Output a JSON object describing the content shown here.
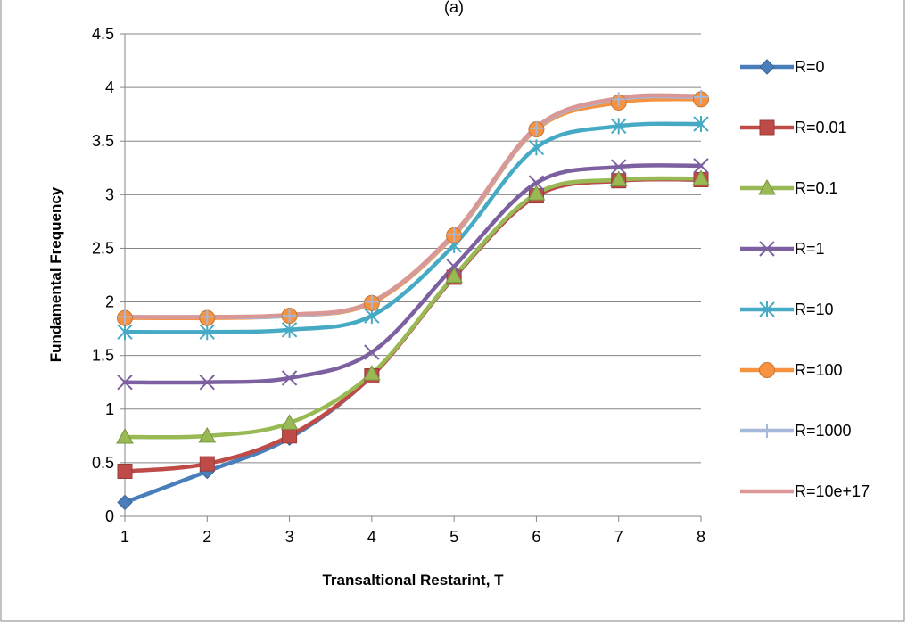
{
  "chart_data": {
    "type": "line",
    "title": "(a)",
    "xlabel": "Transaltional Restarint, T",
    "ylabel": "Fundamental Frequency",
    "x": [
      1,
      2,
      3,
      4,
      5,
      6,
      7,
      8
    ],
    "xlim": [
      1,
      8
    ],
    "ylim": [
      0,
      4.5
    ],
    "yticks": [
      "0",
      "0.5",
      "1",
      "1.5",
      "2",
      "2.5",
      "3",
      "3.5",
      "4",
      "4.5"
    ],
    "xticks": [
      "1",
      "2",
      "3",
      "4",
      "5",
      "6",
      "7",
      "8"
    ],
    "grid": "horizontal",
    "legend_position": "right",
    "series": [
      {
        "name": "R=0",
        "color": "#4a7ebb",
        "marker": "diamond",
        "values": [
          0.13,
          0.42,
          0.73,
          1.31,
          2.23,
          2.99,
          3.13,
          3.14
        ]
      },
      {
        "name": "R=0.01",
        "color": "#be4b48",
        "marker": "square",
        "values": [
          0.42,
          0.49,
          0.75,
          1.31,
          2.23,
          2.99,
          3.13,
          3.14
        ]
      },
      {
        "name": "R=0.1",
        "color": "#98b954",
        "marker": "triangle",
        "values": [
          0.74,
          0.75,
          0.87,
          1.33,
          2.24,
          3.01,
          3.14,
          3.15
        ]
      },
      {
        "name": "R=1",
        "color": "#7d60a0",
        "marker": "x",
        "values": [
          1.25,
          1.25,
          1.29,
          1.53,
          2.33,
          3.11,
          3.26,
          3.27
        ]
      },
      {
        "name": "R=10",
        "color": "#46aac5",
        "marker": "asterisk",
        "values": [
          1.72,
          1.72,
          1.74,
          1.87,
          2.53,
          3.44,
          3.64,
          3.66
        ]
      },
      {
        "name": "R=100",
        "color": "#f69240",
        "marker": "circle",
        "values": [
          1.85,
          1.85,
          1.87,
          1.99,
          2.62,
          3.61,
          3.86,
          3.89
        ]
      },
      {
        "name": "R=1000",
        "color": "#a5b8d9",
        "marker": "plus",
        "values": [
          1.86,
          1.86,
          1.87,
          2.0,
          2.63,
          3.62,
          3.89,
          3.91
        ]
      },
      {
        "name": "R=10e+17",
        "color": "#d99795",
        "marker": "none",
        "values": [
          1.86,
          1.86,
          1.88,
          2.0,
          2.64,
          3.63,
          3.9,
          3.92
        ]
      }
    ]
  }
}
